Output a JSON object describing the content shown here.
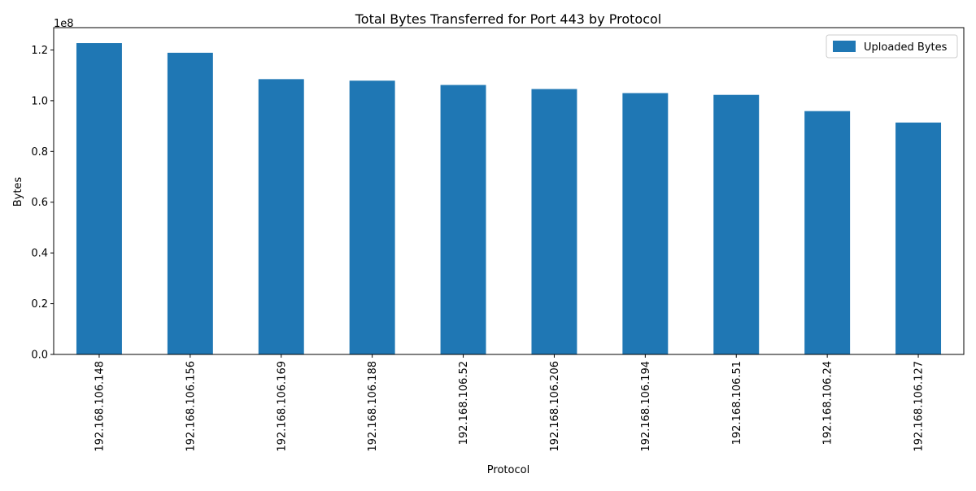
{
  "chart_data": {
    "type": "bar",
    "title": "Total Bytes Transferred for Port 443 by Protocol",
    "xlabel": "Protocol",
    "ylabel": "Bytes",
    "y_scale_label": "1e8",
    "categories": [
      "192.168.106.148",
      "192.168.106.156",
      "192.168.106.169",
      "192.168.106.188",
      "192.168.106.52",
      "192.168.106.206",
      "192.168.106.194",
      "192.168.106.51",
      "192.168.106.24",
      "192.168.106.127"
    ],
    "series": [
      {
        "name": "Uploaded Bytes",
        "color": "#1f77b4",
        "values": [
          122700000,
          118900000,
          108500000,
          107900000,
          106200000,
          104600000,
          103000000,
          102300000,
          95900000,
          91400000
        ]
      }
    ],
    "ylim": [
      0,
      128800000
    ],
    "yticks": [
      0,
      20000000,
      40000000,
      60000000,
      80000000,
      100000000,
      120000000
    ],
    "ytick_labels": [
      "0.0",
      "0.2",
      "0.4",
      "0.6",
      "0.8",
      "1.0",
      "1.2"
    ],
    "grid": false,
    "legend_position": "upper right"
  }
}
